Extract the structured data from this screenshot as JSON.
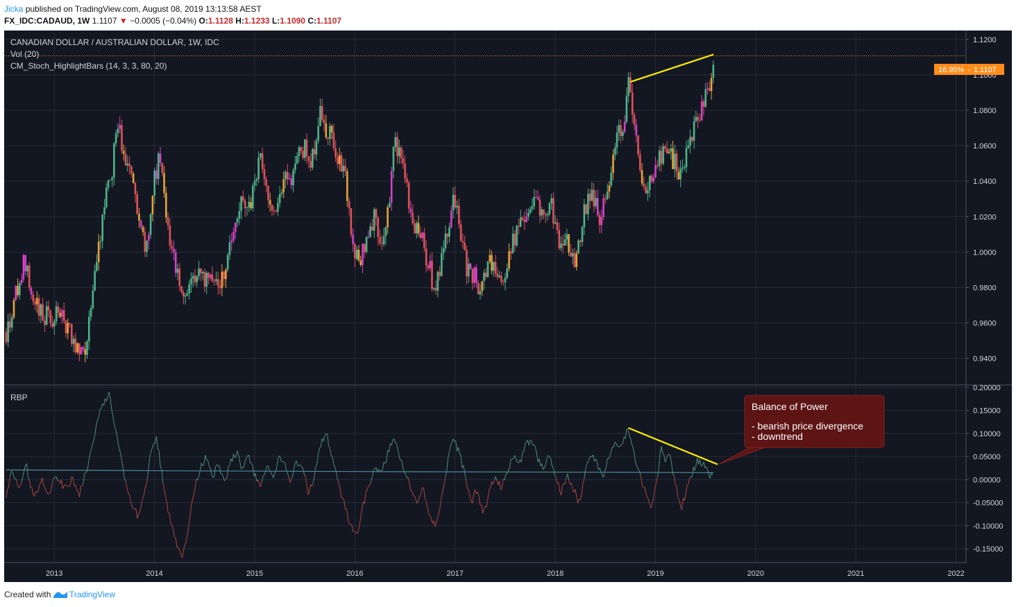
{
  "header": {
    "author": "Jicka",
    "published_text": "published on TradingView.com, August 08, 2019 13:13:58 AEST",
    "symbol": "FX_IDC:CADAUD, 1W",
    "last": "1.1107",
    "change": "−0.0005 (−0.04%)",
    "o_label": "O:",
    "o_value": "1.1128",
    "h_label": "H:",
    "h_value": "1.1233",
    "l_label": "L:",
    "l_value": "1.1090",
    "c_label": "C:",
    "c_value": "1.1107"
  },
  "legend": {
    "title": "CANADIAN DOLLAR / AUSTRALIAN DOLLAR, 1W, IDC",
    "vol": "Vol (20)",
    "indicator": "CM_Stoch_HighlightBars (14, 3, 3, 80, 20)",
    "rbp": "RBP"
  },
  "price_tag": {
    "percent": "16.95%",
    "value": "1.1107"
  },
  "annotation": {
    "title": "Balance of Power",
    "line1": "- bearish price divergence",
    "line2": "- downtrend"
  },
  "footer": {
    "created": "Created with",
    "brand": "TradingView"
  },
  "colors": {
    "background": "#131722",
    "grid": "#252b38",
    "up": "#4fb58a",
    "down": "#e0525a",
    "ob": "#e8a33d",
    "os": "#d643c9",
    "trend": "#ffee00",
    "price_line": "#ff8c1a",
    "bop_pos": "#4f8a78",
    "bop_neg": "#a8463c",
    "bop_signal": "#4a8ea0",
    "annotation_bg": "#5c1414",
    "annotation_border": "#8a2020"
  },
  "chart_data": {
    "type": "candlestick",
    "title": "CANADIAN DOLLAR / AUSTRALIAN DOLLAR, 1W, IDC",
    "timeframe": "1W",
    "price_axis": {
      "range": [
        0.925,
        1.125
      ],
      "ticks": [
        "1.1200",
        "1.1000",
        "1.0800",
        "1.0600",
        "1.0400",
        "1.0200",
        "1.0000",
        "0.9800",
        "0.9600",
        "0.9400"
      ]
    },
    "time_axis": {
      "range": [
        2012.5,
        2022.1
      ],
      "ticks": [
        "2013",
        "2014",
        "2015",
        "2016",
        "2017",
        "2018",
        "2019",
        "2020",
        "2021",
        "2022"
      ]
    },
    "price_path": [
      [
        2012.52,
        0.955
      ],
      [
        2012.6,
        0.972
      ],
      [
        2012.7,
        0.995
      ],
      [
        2012.78,
        0.975
      ],
      [
        2012.85,
        0.965
      ],
      [
        2012.95,
        0.963
      ],
      [
        2013.05,
        0.966
      ],
      [
        2013.15,
        0.955
      ],
      [
        2013.25,
        0.94
      ],
      [
        2013.32,
        0.945
      ],
      [
        2013.38,
        0.975
      ],
      [
        2013.45,
        1.005
      ],
      [
        2013.52,
        1.035
      ],
      [
        2013.58,
        1.048
      ],
      [
        2013.62,
        1.075
      ],
      [
        2013.68,
        1.06
      ],
      [
        2013.75,
        1.045
      ],
      [
        2013.8,
        1.035
      ],
      [
        2013.85,
        1.02
      ],
      [
        2013.9,
        1.0
      ],
      [
        2013.95,
        1.015
      ],
      [
        2014.0,
        1.04
      ],
      [
        2014.05,
        1.055
      ],
      [
        2014.1,
        1.03
      ],
      [
        2014.15,
        1.01
      ],
      [
        2014.2,
        0.995
      ],
      [
        2014.25,
        0.985
      ],
      [
        2014.3,
        0.975
      ],
      [
        2014.35,
        0.98
      ],
      [
        2014.4,
        0.985
      ],
      [
        2014.45,
        0.995
      ],
      [
        2014.5,
        0.985
      ],
      [
        2014.55,
        0.99
      ],
      [
        2014.62,
        0.982
      ],
      [
        2014.7,
        0.985
      ],
      [
        2014.75,
        1.0
      ],
      [
        2014.8,
        1.015
      ],
      [
        2014.85,
        1.03
      ],
      [
        2014.92,
        1.02
      ],
      [
        2015.0,
        1.035
      ],
      [
        2015.05,
        1.055
      ],
      [
        2015.1,
        1.04
      ],
      [
        2015.15,
        1.025
      ],
      [
        2015.2,
        1.02
      ],
      [
        2015.25,
        1.03
      ],
      [
        2015.3,
        1.045
      ],
      [
        2015.38,
        1.04
      ],
      [
        2015.45,
        1.055
      ],
      [
        2015.5,
        1.06
      ],
      [
        2015.55,
        1.045
      ],
      [
        2015.6,
        1.06
      ],
      [
        2015.65,
        1.08
      ],
      [
        2015.7,
        1.065
      ],
      [
        2015.75,
        1.07
      ],
      [
        2015.8,
        1.06
      ],
      [
        2015.85,
        1.05
      ],
      [
        2015.9,
        1.045
      ],
      [
        2015.95,
        1.015
      ],
      [
        2016.0,
        0.998
      ],
      [
        2016.05,
        0.992
      ],
      [
        2016.1,
        1.005
      ],
      [
        2016.15,
        1.015
      ],
      [
        2016.2,
        1.02
      ],
      [
        2016.25,
        1.01
      ],
      [
        2016.3,
        1.005
      ],
      [
        2016.35,
        1.035
      ],
      [
        2016.4,
        1.062
      ],
      [
        2016.45,
        1.055
      ],
      [
        2016.5,
        1.045
      ],
      [
        2016.55,
        1.025
      ],
      [
        2016.6,
        1.015
      ],
      [
        2016.65,
        1.01
      ],
      [
        2016.7,
        1.0
      ],
      [
        2016.75,
        0.99
      ],
      [
        2016.8,
        0.975
      ],
      [
        2016.85,
        0.99
      ],
      [
        2016.9,
        1.005
      ],
      [
        2016.95,
        1.02
      ],
      [
        2017.0,
        1.03
      ],
      [
        2017.05,
        1.01
      ],
      [
        2017.1,
        0.995
      ],
      [
        2017.15,
        0.985
      ],
      [
        2017.2,
        0.99
      ],
      [
        2017.25,
        0.975
      ],
      [
        2017.3,
        0.985
      ],
      [
        2017.35,
        0.995
      ],
      [
        2017.4,
        0.99
      ],
      [
        2017.45,
        0.985
      ],
      [
        2017.5,
        0.99
      ],
      [
        2017.55,
        1.0
      ],
      [
        2017.6,
        1.01
      ],
      [
        2017.65,
        1.02
      ],
      [
        2017.7,
        1.015
      ],
      [
        2017.75,
        1.025
      ],
      [
        2017.8,
        1.035
      ],
      [
        2017.85,
        1.025
      ],
      [
        2017.9,
        1.02
      ],
      [
        2017.95,
        1.03
      ],
      [
        2018.0,
        1.015
      ],
      [
        2018.05,
        1.005
      ],
      [
        2018.1,
        1.01
      ],
      [
        2018.15,
        1.0
      ],
      [
        2018.2,
        0.99
      ],
      [
        2018.25,
        1.01
      ],
      [
        2018.3,
        1.025
      ],
      [
        2018.35,
        1.035
      ],
      [
        2018.4,
        1.025
      ],
      [
        2018.45,
        1.02
      ],
      [
        2018.5,
        1.03
      ],
      [
        2018.55,
        1.045
      ],
      [
        2018.6,
        1.06
      ],
      [
        2018.65,
        1.07
      ],
      [
        2018.7,
        1.075
      ],
      [
        2018.73,
        1.095
      ],
      [
        2018.78,
        1.08
      ],
      [
        2018.82,
        1.06
      ],
      [
        2018.86,
        1.045
      ],
      [
        2018.9,
        1.035
      ],
      [
        2018.95,
        1.04
      ],
      [
        2019.0,
        1.05
      ],
      [
        2019.05,
        1.055
      ],
      [
        2019.1,
        1.06
      ],
      [
        2019.15,
        1.055
      ],
      [
        2019.2,
        1.05
      ],
      [
        2019.25,
        1.045
      ],
      [
        2019.3,
        1.055
      ],
      [
        2019.35,
        1.065
      ],
      [
        2019.4,
        1.075
      ],
      [
        2019.45,
        1.08
      ],
      [
        2019.5,
        1.09
      ],
      [
        2019.55,
        1.095
      ],
      [
        2019.58,
        1.112
      ]
    ],
    "bop_axis": {
      "range": [
        -0.18,
        0.205
      ],
      "ticks": [
        "0.20000",
        "0.15000",
        "0.10000",
        "0.05000",
        "0.00000",
        "-0.05000",
        "-0.10000",
        "-0.15000"
      ]
    },
    "bop_path": [
      [
        2012.52,
        -0.04
      ],
      [
        2012.58,
        0.02
      ],
      [
        2012.65,
        -0.02
      ],
      [
        2012.72,
        0.03
      ],
      [
        2012.8,
        -0.04
      ],
      [
        2012.88,
        0.0
      ],
      [
        2012.95,
        -0.03
      ],
      [
        2013.02,
        0.01
      ],
      [
        2013.1,
        -0.02
      ],
      [
        2013.18,
        0.0
      ],
      [
        2013.25,
        -0.03
      ],
      [
        2013.32,
        0.02
      ],
      [
        2013.38,
        0.07
      ],
      [
        2013.44,
        0.14
      ],
      [
        2013.5,
        0.17
      ],
      [
        2013.55,
        0.19
      ],
      [
        2013.6,
        0.12
      ],
      [
        2013.66,
        0.05
      ],
      [
        2013.72,
        -0.02
      ],
      [
        2013.78,
        -0.06
      ],
      [
        2013.84,
        -0.08
      ],
      [
        2013.9,
        -0.03
      ],
      [
        2013.96,
        0.05
      ],
      [
        2014.02,
        0.09
      ],
      [
        2014.07,
        0.02
      ],
      [
        2014.12,
        -0.05
      ],
      [
        2014.18,
        -0.1
      ],
      [
        2014.23,
        -0.15
      ],
      [
        2014.28,
        -0.17
      ],
      [
        2014.34,
        -0.1
      ],
      [
        2014.4,
        -0.02
      ],
      [
        2014.46,
        0.03
      ],
      [
        2014.52,
        0.05
      ],
      [
        2014.58,
        0.01
      ],
      [
        2014.64,
        0.03
      ],
      [
        2014.7,
        -0.01
      ],
      [
        2014.76,
        0.04
      ],
      [
        2014.82,
        0.06
      ],
      [
        2014.88,
        0.02
      ],
      [
        2014.94,
        0.05
      ],
      [
        2015.0,
        0.01
      ],
      [
        2015.06,
        -0.02
      ],
      [
        2015.12,
        0.03
      ],
      [
        2015.18,
        0.0
      ],
      [
        2015.24,
        0.05
      ],
      [
        2015.3,
        0.03
      ],
      [
        2015.36,
        -0.01
      ],
      [
        2015.42,
        0.04
      ],
      [
        2015.48,
        0.02
      ],
      [
        2015.54,
        -0.03
      ],
      [
        2015.6,
        0.01
      ],
      [
        2015.66,
        0.08
      ],
      [
        2015.72,
        0.1
      ],
      [
        2015.78,
        0.04
      ],
      [
        2015.84,
        -0.01
      ],
      [
        2015.9,
        -0.06
      ],
      [
        2015.96,
        -0.1
      ],
      [
        2016.02,
        -0.12
      ],
      [
        2016.08,
        -0.06
      ],
      [
        2016.14,
        -0.01
      ],
      [
        2016.2,
        0.03
      ],
      [
        2016.26,
        0.01
      ],
      [
        2016.32,
        0.05
      ],
      [
        2016.38,
        0.09
      ],
      [
        2016.44,
        0.06
      ],
      [
        2016.5,
        0.02
      ],
      [
        2016.56,
        -0.02
      ],
      [
        2016.62,
        -0.05
      ],
      [
        2016.68,
        -0.02
      ],
      [
        2016.74,
        -0.07
      ],
      [
        2016.8,
        -0.1
      ],
      [
        2016.86,
        -0.05
      ],
      [
        2016.92,
        0.03
      ],
      [
        2016.98,
        0.09
      ],
      [
        2017.04,
        0.06
      ],
      [
        2017.1,
        0.01
      ],
      [
        2017.16,
        -0.05
      ],
      [
        2017.22,
        -0.02
      ],
      [
        2017.28,
        -0.08
      ],
      [
        2017.34,
        -0.03
      ],
      [
        2017.4,
        0.01
      ],
      [
        2017.46,
        -0.02
      ],
      [
        2017.52,
        0.02
      ],
      [
        2017.58,
        0.05
      ],
      [
        2017.64,
        0.03
      ],
      [
        2017.7,
        0.07
      ],
      [
        2017.76,
        0.09
      ],
      [
        2017.82,
        0.05
      ],
      [
        2017.88,
        0.02
      ],
      [
        2017.94,
        0.05
      ],
      [
        2018.0,
        0.01
      ],
      [
        2018.06,
        -0.03
      ],
      [
        2018.12,
        0.01
      ],
      [
        2018.18,
        -0.02
      ],
      [
        2018.24,
        -0.05
      ],
      [
        2018.3,
        0.02
      ],
      [
        2018.36,
        0.06
      ],
      [
        2018.42,
        0.03
      ],
      [
        2018.48,
        0.01
      ],
      [
        2018.54,
        0.05
      ],
      [
        2018.6,
        0.08
      ],
      [
        2018.66,
        0.07
      ],
      [
        2018.72,
        0.11
      ],
      [
        2018.78,
        0.06
      ],
      [
        2018.84,
        0.01
      ],
      [
        2018.9,
        -0.03
      ],
      [
        2018.96,
        -0.07
      ],
      [
        2019.02,
        0.01
      ],
      [
        2019.06,
        0.07
      ],
      [
        2019.1,
        0.04
      ],
      [
        2019.14,
        0.06
      ],
      [
        2019.18,
        0.01
      ],
      [
        2019.22,
        -0.03
      ],
      [
        2019.26,
        -0.06
      ],
      [
        2019.3,
        -0.03
      ],
      [
        2019.36,
        0.01
      ],
      [
        2019.42,
        0.04
      ],
      [
        2019.48,
        0.03
      ],
      [
        2019.54,
        0.01
      ],
      [
        2019.58,
        0.02
      ]
    ],
    "bop_signal": [
      [
        2012.52,
        0.021
      ],
      [
        2014.2,
        0.019
      ],
      [
        2016.5,
        0.017
      ],
      [
        2018.5,
        0.016
      ],
      [
        2019.58,
        0.015
      ]
    ],
    "trendlines": [
      {
        "panel": "price",
        "from": [
          2018.75,
          1.096
        ],
        "to": [
          2019.58,
          1.1115
        ]
      },
      {
        "panel": "bop",
        "from": [
          2018.73,
          0.112
        ],
        "to": [
          2019.62,
          0.033
        ]
      }
    ],
    "current_price": 1.1107,
    "current_price_percent": "16.95%"
  }
}
